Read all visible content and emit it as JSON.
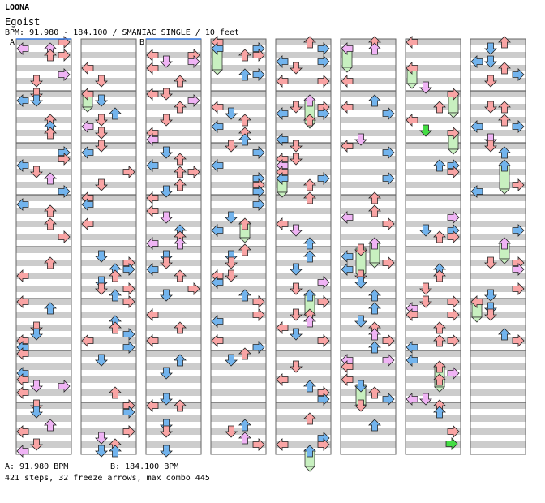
{
  "header": {
    "artist": "LOONA",
    "title": "Egoist",
    "info": "BPM: 91.980 - 184.100 / SMANIAC SINGLE / 10 feet"
  },
  "markers": {
    "a": "A",
    "b": "B"
  },
  "footer": {
    "bpm_a": "A: 91.980 BPM",
    "bpm_b": "B: 184.100 BPM",
    "stats": "421 steps, 32 freeze arrows, max combo 445"
  },
  "colors": {
    "red_arrow": "#f9a4a4",
    "blue_arrow": "#72b4ee",
    "pink_arrow": "#f0b4f5",
    "green_arrow": "#44dd44",
    "freeze": "#c8f0c0",
    "stripe": "#cccccc",
    "border": "#666666",
    "bpm_line": "#3377dd"
  },
  "chart_data": {
    "type": "step-chart",
    "mode": "SMANIAC SINGLE",
    "feet": 10,
    "bpm_range": [
      91.98,
      184.1
    ],
    "steps": 421,
    "freeze_arrows": 32,
    "max_combo": 445,
    "columns": 8,
    "measures_per_column": 8,
    "lanes": [
      "left",
      "down",
      "up",
      "right"
    ]
  }
}
